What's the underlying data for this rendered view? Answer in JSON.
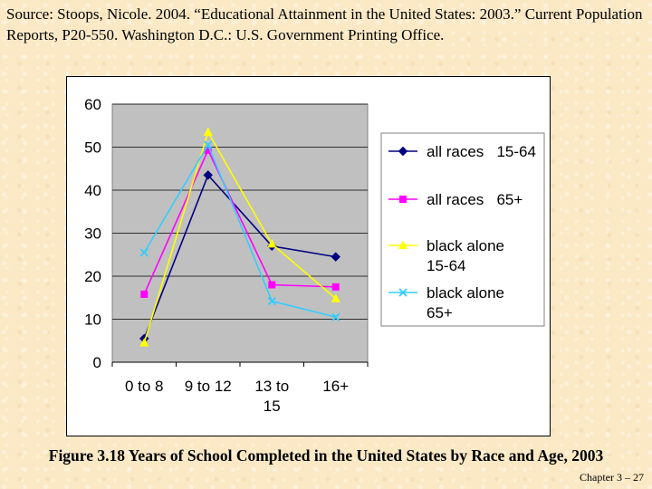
{
  "source": {
    "text": "Source: Stoops, Nicole.  2004.  “Educational Attainment in the United States: 2003.” Current Population Reports, P20-550.  Washington D.C.: U.S. Government Printing Office."
  },
  "caption": "Figure 3.18 Years of School Completed in the United States by Race and Age, 2003",
  "slide_number": "Chapter 3 – 27",
  "colors": {
    "plot_bg": "#c0c0c0",
    "all_races_15_64": "#000080",
    "all_races_65_plus": "#ff00ff",
    "black_alone_15_64": "#ffff00",
    "black_alone_65_plus": "#33ccff"
  },
  "chart_data": {
    "type": "line",
    "title": "",
    "xlabel": "",
    "ylabel": "",
    "ylim": [
      0,
      60
    ],
    "yticks": [
      "0",
      "10",
      "20",
      "30",
      "40",
      "50",
      "60"
    ],
    "categories": [
      [
        "0 to 8"
      ],
      [
        "9 to 12"
      ],
      [
        "13 to",
        "15"
      ],
      [
        "16+"
      ]
    ],
    "legend_position": "right",
    "series": [
      {
        "name": [
          "all races   15-64"
        ],
        "marker": "diamond",
        "color": "#000080",
        "values": [
          5.5,
          43.5,
          27,
          24.5
        ]
      },
      {
        "name": [
          "all races   65+"
        ],
        "marker": "square",
        "color": "#ff00ff",
        "values": [
          15.8,
          49.3,
          18,
          17.5
        ]
      },
      {
        "name": [
          "black alone",
          "15-64"
        ],
        "marker": "triangle",
        "color": "#ffff00",
        "values": [
          4.5,
          53.5,
          27.5,
          14.8
        ]
      },
      {
        "name": [
          "black alone",
          "65+"
        ],
        "marker": "x",
        "color": "#33ccff",
        "values": [
          25.5,
          50.5,
          14.2,
          10.5
        ]
      }
    ]
  }
}
